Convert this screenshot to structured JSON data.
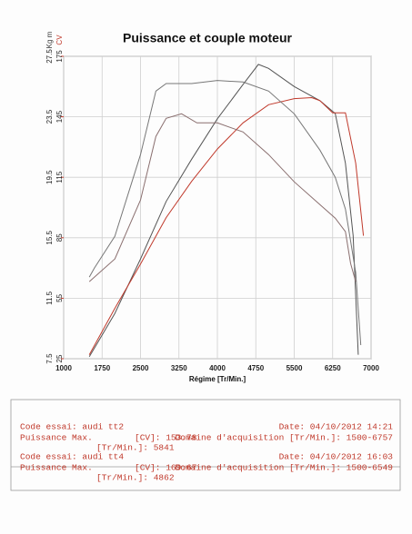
{
  "chart_data": {
    "type": "line",
    "title": "Puissance et couple moteur",
    "x_label": "Régime [Tr/Min.]",
    "y_label": "Kg m",
    "y2_label": "CV",
    "xlim": [
      1000,
      7000
    ],
    "xticks": [
      1000,
      1750,
      2500,
      3250,
      4000,
      4750,
      5500,
      6250,
      7000
    ],
    "ylim": [
      7.5,
      27.5
    ],
    "yticks": [
      7.5,
      11.5,
      15.5,
      19.5,
      23.5,
      27.5
    ],
    "y2lim": [
      25,
      175
    ],
    "y2ticks": [
      25,
      55,
      85,
      115,
      145,
      175
    ],
    "grid": true,
    "series": [
      {
        "color": "#555555",
        "axis": "y2",
        "x": [
          1500,
          2000,
          2500,
          3000,
          3500,
          4000,
          4500,
          4800,
          5000,
          5500,
          6000,
          6300,
          6500,
          6650,
          6750
        ],
        "values": [
          26,
          47.5,
          74.5,
          103,
          124,
          144,
          161,
          171,
          169,
          160,
          153,
          146.6,
          122,
          86,
          27
        ]
      },
      {
        "color": "#c0392b",
        "axis": "y2",
        "x": [
          1500,
          2000,
          2500,
          3000,
          3500,
          4000,
          4500,
          5000,
          5500,
          5841,
          6000,
          6250,
          6500,
          6700,
          6850
        ],
        "values": [
          27,
          50,
          72,
          95,
          113,
          129,
          142,
          151,
          154,
          154.5,
          153,
          147,
          147,
          122,
          86
        ]
      },
      {
        "color": "#777777",
        "axis": "y",
        "x": [
          1500,
          1600,
          2000,
          2500,
          2800,
          3000,
          3500,
          4000,
          4500,
          5000,
          5500,
          6000,
          6300,
          6500,
          6700,
          6800
        ],
        "values": [
          12.9,
          13.5,
          15.6,
          21,
          25.2,
          25.7,
          25.7,
          25.9,
          25.8,
          25.2,
          23.7,
          21.3,
          19.5,
          17.4,
          13.2,
          8.4
        ]
      },
      {
        "color": "#8a6f6f",
        "axis": "y",
        "x": [
          1500,
          2000,
          2500,
          2800,
          3000,
          3300,
          3600,
          4000,
          4500,
          5000,
          5500,
          6000,
          6300,
          6500,
          6600,
          6700
        ],
        "values": [
          12.6,
          14.1,
          18,
          22.2,
          23.4,
          23.7,
          23.1,
          23.1,
          22.5,
          21,
          19.2,
          17.7,
          16.8,
          15.9,
          13.8,
          12.6
        ]
      }
    ]
  },
  "report": [
    {
      "code": "Code essai: audi tt2",
      "date": "Date: 04/10/2012 14:21",
      "power_label": "Puissance Max.",
      "power": "[CV]: 153.78",
      "range": "Domaine d'acquisition [Tr/Min.]: 1500-6757",
      "rpm": "[Tr/Min.]: 5841"
    },
    {
      "code": "Code essai: audi tt4",
      "date": "Date: 04/10/2012 16:03",
      "power_label": "Puissance Max.",
      "power": "[CV]: 169.67",
      "range": "Domaine d'acquisition [Tr/Min.]: 1500-6549",
      "rpm": "[Tr/Min.]: 4862"
    }
  ]
}
